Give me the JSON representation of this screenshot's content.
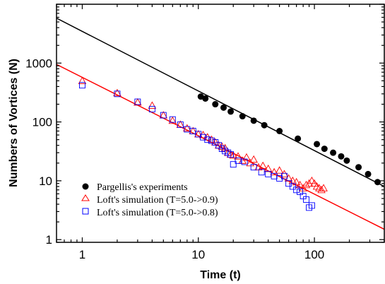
{
  "chart_data": {
    "type": "scatter",
    "title": "",
    "xlabel": "Time (t)",
    "ylabel": "Numbers of Vortices (N)",
    "xscale": "log",
    "yscale": "log",
    "xlim": [
      0.6,
      400
    ],
    "ylim": [
      0.9,
      10000
    ],
    "x_ticks": [
      1,
      10,
      100
    ],
    "x_tick_labels": [
      "1",
      "10",
      "100"
    ],
    "y_ticks": [
      1,
      10,
      100,
      1000
    ],
    "y_tick_labels": [
      "1",
      "10",
      "100",
      "1000"
    ],
    "grid": false,
    "legend_position": "bottom-left",
    "series": [
      {
        "name": "Pargellis's experiments",
        "marker": "filled-circle",
        "color": "#000000",
        "points": [
          [
            10.5,
            270
          ],
          [
            11.5,
            250
          ],
          [
            14,
            200
          ],
          [
            16.5,
            175
          ],
          [
            19,
            150
          ],
          [
            24,
            125
          ],
          [
            30,
            105
          ],
          [
            37,
            88
          ],
          [
            50,
            70
          ],
          [
            72,
            52
          ],
          [
            105,
            42
          ],
          [
            122,
            35
          ],
          [
            145,
            30
          ],
          [
            170,
            26
          ],
          [
            190,
            22
          ],
          [
            240,
            17
          ],
          [
            290,
            13
          ],
          [
            350,
            9.5
          ]
        ]
      },
      {
        "name": "Loft's simulation (T=5.0->0.9)",
        "marker": "open-triangle",
        "color": "#ff0000",
        "points": [
          [
            1,
            500
          ],
          [
            2,
            310
          ],
          [
            3,
            215
          ],
          [
            4,
            190
          ],
          [
            5,
            130
          ],
          [
            6,
            105
          ],
          [
            7,
            90
          ],
          [
            8,
            78
          ],
          [
            9,
            70
          ],
          [
            10,
            62
          ],
          [
            11,
            60
          ],
          [
            12,
            55
          ],
          [
            13,
            50
          ],
          [
            14,
            45
          ],
          [
            15,
            40
          ],
          [
            16,
            38
          ],
          [
            17,
            36
          ],
          [
            18,
            30
          ],
          [
            19,
            28
          ],
          [
            20,
            27
          ],
          [
            22,
            26
          ],
          [
            24,
            22
          ],
          [
            26,
            25
          ],
          [
            28,
            20
          ],
          [
            30,
            23
          ],
          [
            33,
            17
          ],
          [
            36,
            18
          ],
          [
            40,
            16
          ],
          [
            45,
            14
          ],
          [
            50,
            15
          ],
          [
            55,
            13
          ],
          [
            60,
            11
          ],
          [
            65,
            10
          ],
          [
            70,
            9.5
          ],
          [
            75,
            8.5
          ],
          [
            80,
            7.5
          ],
          [
            85,
            8.5
          ],
          [
            90,
            9
          ],
          [
            95,
            10
          ],
          [
            100,
            9
          ],
          [
            105,
            8
          ],
          [
            110,
            7.5
          ],
          [
            115,
            7
          ],
          [
            120,
            7.5
          ]
        ]
      },
      {
        "name": "Loft's simulation (T=5.0->0.8)",
        "marker": "open-square",
        "color": "#0000ff",
        "points": [
          [
            1,
            420
          ],
          [
            2,
            300
          ],
          [
            3,
            220
          ],
          [
            4,
            165
          ],
          [
            5,
            130
          ],
          [
            6,
            110
          ],
          [
            7,
            90
          ],
          [
            8,
            75
          ],
          [
            9,
            70
          ],
          [
            10,
            62
          ],
          [
            11,
            55
          ],
          [
            12,
            50
          ],
          [
            13,
            48
          ],
          [
            14,
            45
          ],
          [
            15,
            40
          ],
          [
            16,
            35
          ],
          [
            17,
            32
          ],
          [
            18,
            30
          ],
          [
            19,
            28
          ],
          [
            20,
            19
          ],
          [
            22,
            22
          ],
          [
            25,
            21
          ],
          [
            30,
            17
          ],
          [
            35,
            14
          ],
          [
            40,
            13
          ],
          [
            45,
            12
          ],
          [
            50,
            11
          ],
          [
            55,
            12
          ],
          [
            60,
            9
          ],
          [
            65,
            8
          ],
          [
            70,
            7
          ],
          [
            75,
            6.5
          ],
          [
            80,
            5.5
          ],
          [
            85,
            4.8
          ],
          [
            90,
            3.5
          ],
          [
            95,
            3.8
          ]
        ]
      },
      {
        "name": "",
        "type": "line",
        "color": "#000000",
        "endpoints": [
          [
            0.6,
            5800
          ],
          [
            400,
            8
          ]
        ]
      },
      {
        "name": "",
        "type": "line",
        "color": "#ff0000",
        "endpoints": [
          [
            0.6,
            950
          ],
          [
            400,
            1.5
          ]
        ]
      }
    ]
  }
}
